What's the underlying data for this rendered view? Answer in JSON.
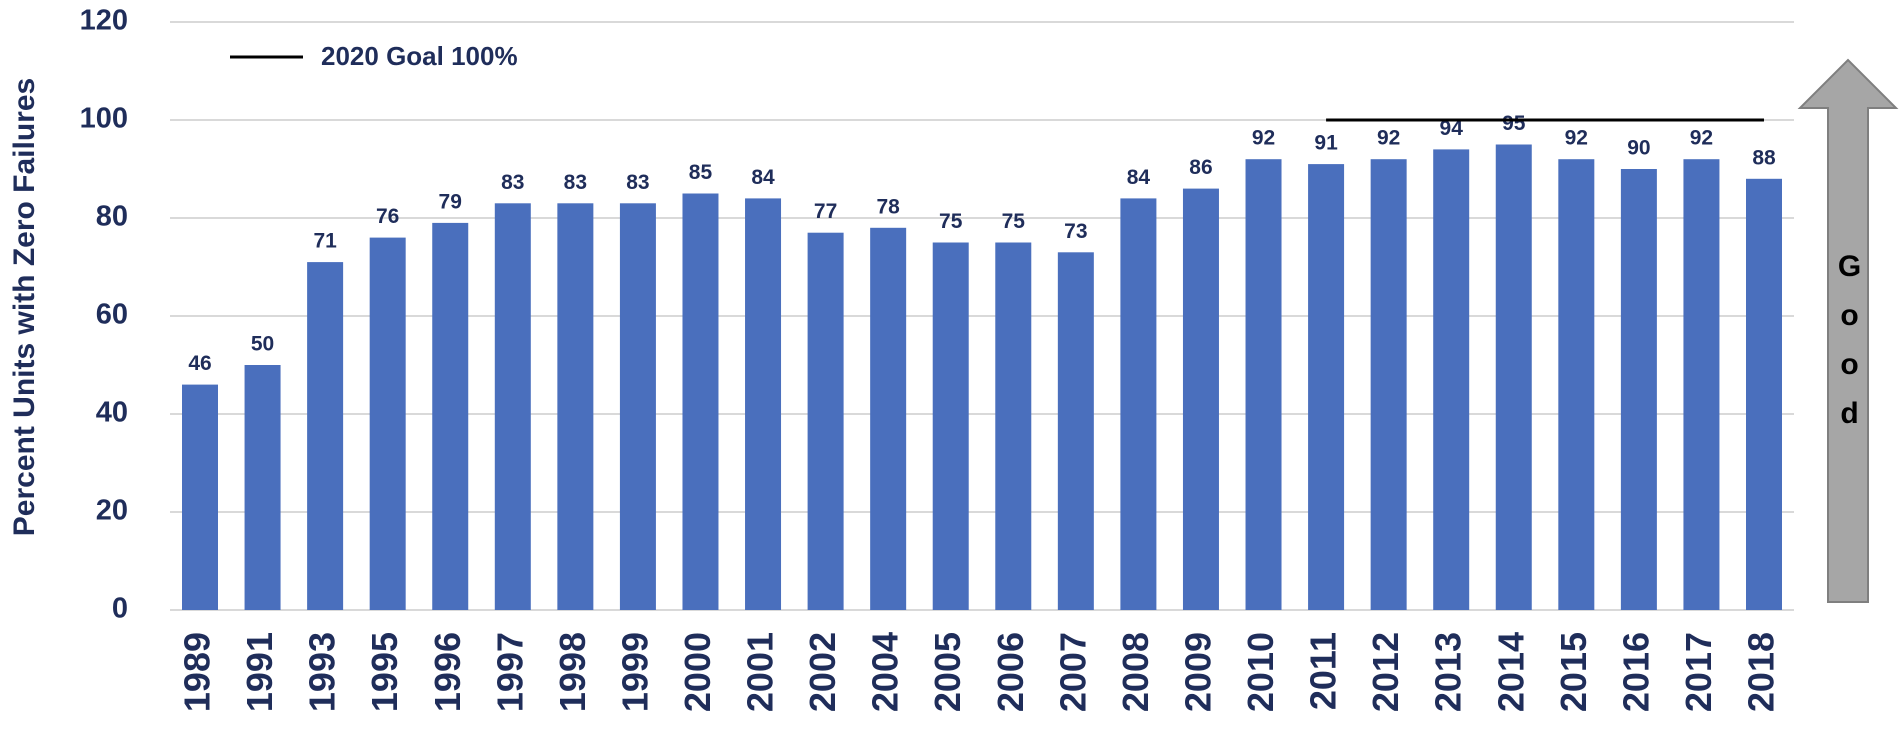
{
  "chart_data": {
    "type": "bar",
    "y_axis_label": "Percent Units with Zero Failures",
    "categories": [
      "1989",
      "1991",
      "1993",
      "1995",
      "1996",
      "1997",
      "1998",
      "1999",
      "2000",
      "2001",
      "2002",
      "2004",
      "2005",
      "2006",
      "2007",
      "2008",
      "2009",
      "2010",
      "2011",
      "2012",
      "2013",
      "2014",
      "2015",
      "2016",
      "2017",
      "2018"
    ],
    "values": [
      46,
      50,
      71,
      76,
      79,
      83,
      83,
      83,
      85,
      84,
      77,
      78,
      75,
      75,
      73,
      84,
      86,
      92,
      91,
      92,
      94,
      95,
      92,
      90,
      92,
      88
    ],
    "color": "#4a6fbd",
    "series": [
      {
        "name": "2020 Goal 100%",
        "type": "line",
        "color": "#000000",
        "values": [
          null,
          null,
          null,
          null,
          null,
          null,
          null,
          null,
          null,
          null,
          null,
          null,
          null,
          null,
          null,
          null,
          null,
          null,
          100,
          100,
          100,
          100,
          100,
          100,
          100,
          100
        ]
      }
    ],
    "ylim": [
      0,
      120
    ],
    "yticks": [
      0,
      20,
      40,
      60,
      80,
      100,
      120
    ],
    "grid": true,
    "arrow_label": "Good"
  }
}
